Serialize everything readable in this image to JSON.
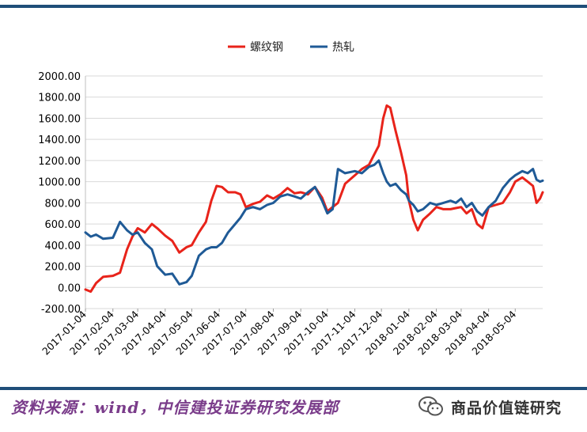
{
  "chart_data": {
    "type": "line",
    "title": "",
    "xlabel": "",
    "ylabel": "",
    "ylim": [
      -200,
      2000
    ],
    "y_ticks": [
      "2000.00",
      "1800.00",
      "1600.00",
      "1400.00",
      "1200.00",
      "1000.00",
      "800.00",
      "600.00",
      "400.00",
      "200.00",
      "0.00",
      "-200.00"
    ],
    "x_ticks": [
      "2017-01-04",
      "2017-02-04",
      "2017-03-04",
      "2017-04-04",
      "2017-05-04",
      "2017-06-04",
      "2017-07-04",
      "2017-08-04",
      "2017-09-04",
      "2017-10-04",
      "2017-11-04",
      "2017-12-04",
      "2018-01-04",
      "2018-02-04",
      "2018-03-04",
      "2018-04-04",
      "2018-05-04"
    ],
    "x_range": [
      "2017-01-04",
      "2018-06-04"
    ],
    "grid": "horizontal",
    "legend_position": "top",
    "series": [
      {
        "name": "螺纹钢",
        "color": "#e8231a",
        "points": [
          [
            "2017-01-04",
            -20
          ],
          [
            "2017-01-10",
            -40
          ],
          [
            "2017-01-16",
            40
          ],
          [
            "2017-01-24",
            100
          ],
          [
            "2017-02-04",
            110
          ],
          [
            "2017-02-12",
            140
          ],
          [
            "2017-02-20",
            360
          ],
          [
            "2017-02-26",
            480
          ],
          [
            "2017-03-04",
            560
          ],
          [
            "2017-03-12",
            520
          ],
          [
            "2017-03-20",
            600
          ],
          [
            "2017-03-26",
            560
          ],
          [
            "2017-04-04",
            490
          ],
          [
            "2017-04-12",
            440
          ],
          [
            "2017-04-20",
            330
          ],
          [
            "2017-04-28",
            380
          ],
          [
            "2017-05-04",
            400
          ],
          [
            "2017-05-12",
            520
          ],
          [
            "2017-05-20",
            620
          ],
          [
            "2017-05-26",
            820
          ],
          [
            "2017-06-01",
            960
          ],
          [
            "2017-06-07",
            950
          ],
          [
            "2017-06-14",
            900
          ],
          [
            "2017-06-22",
            900
          ],
          [
            "2017-06-28",
            880
          ],
          [
            "2017-07-04",
            760
          ],
          [
            "2017-07-12",
            790
          ],
          [
            "2017-07-20",
            810
          ],
          [
            "2017-07-28",
            870
          ],
          [
            "2017-08-04",
            840
          ],
          [
            "2017-08-12",
            880
          ],
          [
            "2017-08-20",
            940
          ],
          [
            "2017-08-28",
            890
          ],
          [
            "2017-09-04",
            900
          ],
          [
            "2017-09-12",
            880
          ],
          [
            "2017-09-20",
            950
          ],
          [
            "2017-09-28",
            850
          ],
          [
            "2017-10-04",
            720
          ],
          [
            "2017-10-10",
            760
          ],
          [
            "2017-10-16",
            800
          ],
          [
            "2017-10-24",
            980
          ],
          [
            "2017-11-04",
            1060
          ],
          [
            "2017-11-12",
            1120
          ],
          [
            "2017-11-20",
            1160
          ],
          [
            "2017-11-26",
            1260
          ],
          [
            "2017-12-01",
            1340
          ],
          [
            "2017-12-06",
            1600
          ],
          [
            "2017-12-10",
            1720
          ],
          [
            "2017-12-14",
            1700
          ],
          [
            "2017-12-20",
            1480
          ],
          [
            "2017-12-26",
            1280
          ],
          [
            "2018-01-01",
            1060
          ],
          [
            "2018-01-04",
            820
          ],
          [
            "2018-01-09",
            640
          ],
          [
            "2018-01-14",
            540
          ],
          [
            "2018-01-20",
            640
          ],
          [
            "2018-01-28",
            700
          ],
          [
            "2018-02-04",
            760
          ],
          [
            "2018-02-12",
            740
          ],
          [
            "2018-02-20",
            740
          ],
          [
            "2018-02-26",
            750
          ],
          [
            "2018-03-04",
            760
          ],
          [
            "2018-03-10",
            700
          ],
          [
            "2018-03-16",
            740
          ],
          [
            "2018-03-22",
            600
          ],
          [
            "2018-03-28",
            560
          ],
          [
            "2018-04-04",
            760
          ],
          [
            "2018-04-12",
            780
          ],
          [
            "2018-04-20",
            800
          ],
          [
            "2018-04-28",
            900
          ],
          [
            "2018-05-04",
            1000
          ],
          [
            "2018-05-12",
            1040
          ],
          [
            "2018-05-18",
            1000
          ],
          [
            "2018-05-24",
            960
          ],
          [
            "2018-05-28",
            800
          ],
          [
            "2018-06-01",
            840
          ],
          [
            "2018-06-04",
            900
          ]
        ]
      },
      {
        "name": "热轧",
        "color": "#1f5a96",
        "points": [
          [
            "2017-01-04",
            520
          ],
          [
            "2017-01-10",
            480
          ],
          [
            "2017-01-16",
            500
          ],
          [
            "2017-01-24",
            460
          ],
          [
            "2017-02-04",
            470
          ],
          [
            "2017-02-12",
            620
          ],
          [
            "2017-02-20",
            540
          ],
          [
            "2017-02-26",
            500
          ],
          [
            "2017-03-04",
            520
          ],
          [
            "2017-03-12",
            420
          ],
          [
            "2017-03-20",
            360
          ],
          [
            "2017-03-26",
            200
          ],
          [
            "2017-04-04",
            120
          ],
          [
            "2017-04-12",
            130
          ],
          [
            "2017-04-20",
            30
          ],
          [
            "2017-04-28",
            50
          ],
          [
            "2017-05-04",
            110
          ],
          [
            "2017-05-12",
            300
          ],
          [
            "2017-05-20",
            360
          ],
          [
            "2017-05-26",
            380
          ],
          [
            "2017-06-01",
            380
          ],
          [
            "2017-06-07",
            420
          ],
          [
            "2017-06-14",
            520
          ],
          [
            "2017-06-22",
            600
          ],
          [
            "2017-06-28",
            660
          ],
          [
            "2017-07-04",
            740
          ],
          [
            "2017-07-12",
            760
          ],
          [
            "2017-07-20",
            740
          ],
          [
            "2017-07-28",
            780
          ],
          [
            "2017-08-04",
            800
          ],
          [
            "2017-08-12",
            860
          ],
          [
            "2017-08-20",
            880
          ],
          [
            "2017-08-28",
            860
          ],
          [
            "2017-09-04",
            840
          ],
          [
            "2017-09-12",
            900
          ],
          [
            "2017-09-20",
            950
          ],
          [
            "2017-09-28",
            820
          ],
          [
            "2017-10-04",
            700
          ],
          [
            "2017-10-10",
            740
          ],
          [
            "2017-10-16",
            1120
          ],
          [
            "2017-10-24",
            1080
          ],
          [
            "2017-11-04",
            1100
          ],
          [
            "2017-11-12",
            1080
          ],
          [
            "2017-11-20",
            1140
          ],
          [
            "2017-11-26",
            1160
          ],
          [
            "2017-12-01",
            1200
          ],
          [
            "2017-12-06",
            1080
          ],
          [
            "2017-12-10",
            1000
          ],
          [
            "2017-12-14",
            960
          ],
          [
            "2017-12-20",
            980
          ],
          [
            "2017-12-26",
            920
          ],
          [
            "2018-01-01",
            880
          ],
          [
            "2018-01-04",
            820
          ],
          [
            "2018-01-09",
            780
          ],
          [
            "2018-01-14",
            720
          ],
          [
            "2018-01-20",
            740
          ],
          [
            "2018-01-28",
            800
          ],
          [
            "2018-02-04",
            780
          ],
          [
            "2018-02-12",
            800
          ],
          [
            "2018-02-20",
            820
          ],
          [
            "2018-02-26",
            800
          ],
          [
            "2018-03-04",
            840
          ],
          [
            "2018-03-10",
            760
          ],
          [
            "2018-03-16",
            800
          ],
          [
            "2018-03-22",
            720
          ],
          [
            "2018-03-28",
            680
          ],
          [
            "2018-04-04",
            760
          ],
          [
            "2018-04-12",
            820
          ],
          [
            "2018-04-20",
            940
          ],
          [
            "2018-04-28",
            1020
          ],
          [
            "2018-05-04",
            1060
          ],
          [
            "2018-05-12",
            1100
          ],
          [
            "2018-05-18",
            1080
          ],
          [
            "2018-05-24",
            1120
          ],
          [
            "2018-05-28",
            1020
          ],
          [
            "2018-06-01",
            1000
          ],
          [
            "2018-06-04",
            1010
          ]
        ]
      }
    ]
  },
  "footer": {
    "source": "资料来源：wind，中信建投证券研究发展部",
    "watermark": "商品价值链研究"
  }
}
